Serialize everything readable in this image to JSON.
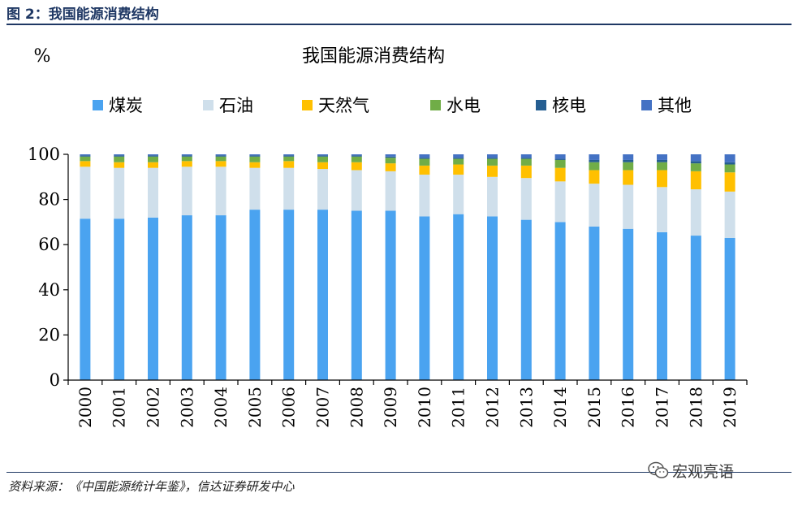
{
  "figure": {
    "title": "图 2：我国能源消费结构",
    "source": "资料来源：《中国能源统计年鉴》，信达证券研发中心",
    "watermark": "宏观亮语"
  },
  "colors": {
    "coal": "#4aa3f0",
    "oil": "#cfdfeb",
    "gas": "#ffc000",
    "hydro": "#70ad47",
    "nuclear": "#255e91",
    "other": "#4472c4"
  },
  "chart_data": {
    "type": "bar",
    "stacked": true,
    "title": "我国能源消费结构",
    "ylabel": "%",
    "ylim": [
      0,
      100
    ],
    "yticks": [
      0,
      20,
      40,
      60,
      80,
      100
    ],
    "legend_position": "top",
    "categories": [
      "2000",
      "2001",
      "2002",
      "2003",
      "2004",
      "2005",
      "2006",
      "2007",
      "2008",
      "2009",
      "2010",
      "2011",
      "2012",
      "2013",
      "2014",
      "2015",
      "2016",
      "2017",
      "2018",
      "2019"
    ],
    "series": [
      {
        "name": "煤炭",
        "values": [
          71.5,
          71.5,
          72,
          73,
          73,
          75.5,
          75.5,
          75.5,
          75,
          75,
          72.5,
          73.5,
          72.5,
          71,
          70,
          68,
          67,
          65.5,
          64,
          63
        ]
      },
      {
        "name": "石油",
        "values": [
          23,
          22.5,
          22,
          21.5,
          21.5,
          18.5,
          18.5,
          18,
          18,
          17.5,
          18.5,
          17.5,
          17.5,
          18.5,
          18,
          19,
          19.5,
          20,
          20.5,
          20.5
        ]
      },
      {
        "name": "天然气",
        "values": [
          2.5,
          2.5,
          2.5,
          2.5,
          2.5,
          2.5,
          3,
          3,
          3.5,
          3.5,
          4,
          4.5,
          5,
          5.5,
          6,
          6,
          6.5,
          7.5,
          8,
          8.5
        ]
      },
      {
        "name": "水电",
        "values": [
          2,
          2.5,
          2.5,
          2,
          2,
          2.5,
          2,
          2.5,
          2.5,
          2.5,
          3,
          2.5,
          3,
          3,
          3.5,
          3.5,
          3.5,
          3.5,
          3.5,
          3.5
        ]
      },
      {
        "name": "核电",
        "values": [
          0.5,
          0.5,
          0.5,
          0.5,
          0.5,
          0.5,
          0.5,
          0.5,
          0.5,
          0.5,
          0.5,
          0.5,
          0.5,
          0.5,
          0.5,
          1,
          1,
          1,
          1,
          1
        ]
      },
      {
        "name": "其他",
        "values": [
          0.5,
          0.5,
          0.5,
          0.5,
          0.5,
          0.5,
          0.5,
          0.5,
          0.5,
          1,
          1.5,
          1.5,
          1.5,
          1.5,
          2,
          2.5,
          2.5,
          2.5,
          3,
          3.5
        ]
      }
    ]
  }
}
